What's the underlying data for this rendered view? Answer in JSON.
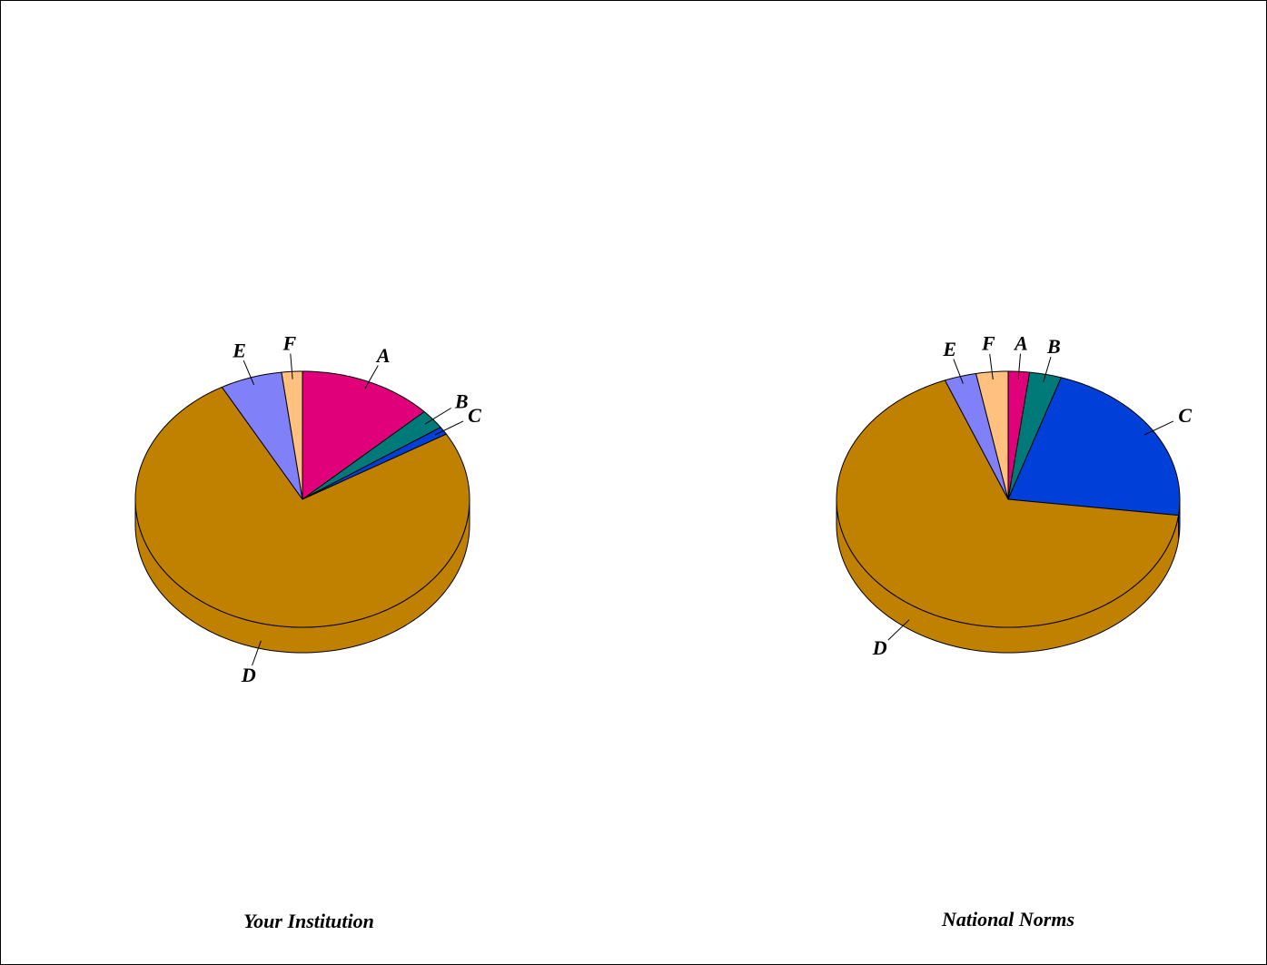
{
  "chart_data": [
    {
      "type": "pie",
      "title": "Your Institution",
      "categories": [
        "A",
        "B",
        "C",
        "D",
        "E",
        "F"
      ],
      "values": [
        13,
        2.5,
        1,
        75.5,
        6,
        2
      ],
      "colors": [
        "#e0007a",
        "#007a78",
        "#0040d8",
        "#c08000",
        "#8080f8",
        "#ffc080"
      ]
    },
    {
      "type": "pie",
      "title": "National Norms",
      "categories": [
        "A",
        "B",
        "C",
        "D",
        "E",
        "F"
      ],
      "values": [
        2,
        3,
        22,
        67,
        3,
        3
      ],
      "colors": [
        "#e0007a",
        "#007a78",
        "#0040d8",
        "#c08000",
        "#8080f8",
        "#ffc080"
      ]
    }
  ]
}
